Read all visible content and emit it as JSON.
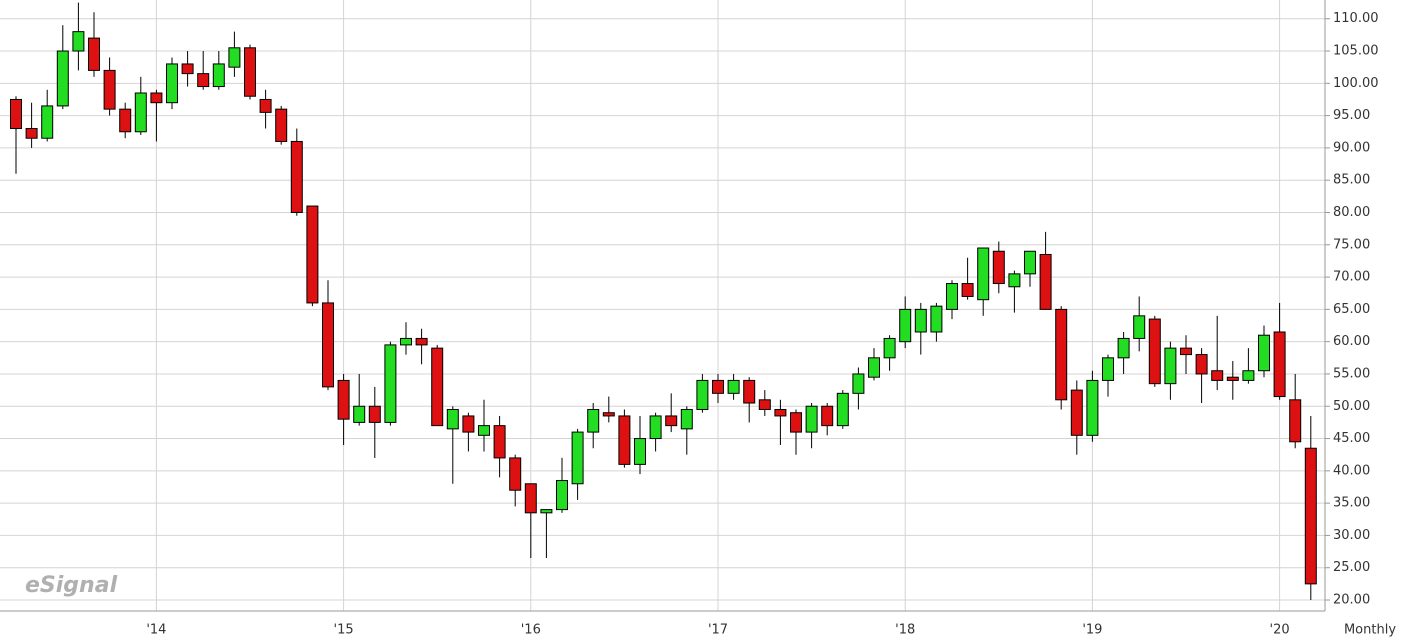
{
  "chart_data": {
    "type": "candlestick",
    "categories": [
      null,
      null,
      null,
      null,
      null,
      null,
      null,
      null,
      null,
      "'14",
      null,
      null,
      null,
      null,
      null,
      null,
      null,
      null,
      null,
      null,
      null,
      "'15",
      null,
      null,
      null,
      null,
      null,
      null,
      null,
      null,
      null,
      null,
      null,
      "'16",
      null,
      null,
      null,
      null,
      null,
      null,
      null,
      null,
      null,
      null,
      null,
      "'17",
      null,
      null,
      null,
      null,
      null,
      null,
      null,
      null,
      null,
      null,
      null,
      "'18",
      null,
      null,
      null,
      null,
      null,
      null,
      null,
      null,
      null,
      null,
      null,
      "'19",
      null,
      null,
      null,
      null,
      null,
      null,
      null,
      null,
      null,
      null,
      null,
      "'20",
      null,
      null
    ],
    "open": [
      97.5,
      93,
      91.5,
      96.5,
      105,
      107,
      102,
      96,
      92.5,
      98.5,
      97,
      103,
      101.5,
      99.5,
      102.5,
      105.5,
      97.5,
      96,
      91,
      81,
      66,
      54,
      47.5,
      50,
      47.5,
      59.5,
      60.5,
      59,
      46.5,
      48.5,
      45.5,
      47,
      42,
      38,
      33.5,
      34,
      38,
      46,
      49,
      48.5,
      41,
      45,
      48.5,
      46.5,
      49.5,
      54,
      52,
      54,
      51,
      49.5,
      49,
      46,
      50,
      47,
      52,
      54.5,
      57.5,
      60,
      61.5,
      61.5,
      65,
      69,
      66.5,
      74,
      68.5,
      70.5,
      73.5,
      65,
      52.5,
      45.5,
      54,
      57.5,
      60.5,
      63.5,
      53.5,
      59,
      58,
      55.5,
      54.5,
      54,
      55.5,
      61.5,
      51,
      43.5
    ],
    "high": [
      98,
      97,
      99,
      109,
      112.5,
      111,
      104,
      97,
      101,
      99,
      104,
      105,
      105,
      105,
      108,
      106,
      99,
      96.5,
      93,
      81,
      69.5,
      55,
      55,
      53,
      60,
      63,
      62,
      59.5,
      50,
      49,
      51,
      48.5,
      42.5,
      38,
      34,
      42,
      46.5,
      50.5,
      51.5,
      49.5,
      48.5,
      49,
      52,
      50,
      55,
      55,
      55,
      54.5,
      52.5,
      51,
      49.5,
      50.5,
      50.5,
      52.5,
      56,
      59,
      61,
      67,
      66,
      66,
      69.5,
      73,
      74.5,
      75.5,
      71,
      74,
      77,
      65.5,
      54,
      55.5,
      58,
      61.5,
      67,
      64,
      60,
      61,
      59,
      64,
      57,
      59,
      62.5,
      66,
      55,
      48.5
    ],
    "low": [
      86,
      90,
      91,
      96,
      102,
      101,
      95,
      91.5,
      92,
      91,
      96,
      99.5,
      99,
      99,
      101,
      97.5,
      93,
      90.5,
      79.5,
      65.5,
      52.5,
      44,
      47,
      42,
      47,
      58,
      56.5,
      47,
      38,
      43,
      43,
      39,
      34.5,
      26.5,
      26.5,
      33.5,
      35.5,
      43.5,
      47.5,
      40.5,
      39.5,
      43,
      46,
      42.5,
      49,
      50.5,
      51,
      47.5,
      48.5,
      44,
      42.5,
      43.5,
      45.5,
      46.5,
      49.5,
      54,
      55.5,
      59,
      58,
      60,
      63.5,
      66.5,
      64,
      67.5,
      64.5,
      68.5,
      65,
      49.5,
      42.5,
      44.5,
      51.5,
      55,
      58.5,
      53,
      51,
      55,
      50.5,
      52.5,
      51,
      53.5,
      54.5,
      51,
      43.5,
      20
    ],
    "close": [
      93,
      91.5,
      96.5,
      105,
      108,
      102,
      96,
      92.5,
      98.5,
      97,
      103,
      101.5,
      99.5,
      103,
      105.5,
      98,
      95.5,
      91,
      80,
      66,
      53,
      48,
      50,
      47.5,
      59.5,
      60.5,
      59.5,
      47,
      49.5,
      46,
      47,
      42,
      37,
      33.5,
      34,
      38.5,
      46,
      49.5,
      48.5,
      41,
      45,
      48.5,
      47,
      49.5,
      54,
      52,
      54,
      50.5,
      49.5,
      48.5,
      46,
      50,
      47,
      52,
      55,
      57.5,
      60.5,
      65,
      65,
      65.5,
      69,
      67,
      74.5,
      69,
      70.5,
      74,
      65,
      51,
      45.5,
      54,
      57.5,
      60.5,
      64,
      53.5,
      59,
      58,
      55,
      54,
      54,
      55.5,
      61,
      51.5,
      44.5,
      22.5
    ],
    "up_color": "#22dd22",
    "down_color": "#dd1111",
    "ylim": [
      18.3,
      112.9
    ],
    "yticks": [
      {
        "value": 20,
        "label": "20.00"
      },
      {
        "value": 25,
        "label": "25.00"
      },
      {
        "value": 30,
        "label": "30.00"
      },
      {
        "value": 35,
        "label": "35.00"
      },
      {
        "value": 40,
        "label": "40.00"
      },
      {
        "value": 45,
        "label": "45.00"
      },
      {
        "value": 50,
        "label": "50.00"
      },
      {
        "value": 55,
        "label": "55.00"
      },
      {
        "value": 60,
        "label": "60.00"
      },
      {
        "value": 65,
        "label": "65.00"
      },
      {
        "value": 70,
        "label": "70.00"
      },
      {
        "value": 75,
        "label": "75.00"
      },
      {
        "value": 80,
        "label": "80.00"
      },
      {
        "value": 85,
        "label": "85.00"
      },
      {
        "value": 90,
        "label": "90.00"
      },
      {
        "value": 95,
        "label": "95.00"
      },
      {
        "value": 100,
        "label": "100.00"
      },
      {
        "value": 105,
        "label": "105.00"
      },
      {
        "value": 110,
        "label": "110.00"
      }
    ],
    "grid": true,
    "period_label": "Monthly",
    "watermark": "eSignal"
  }
}
